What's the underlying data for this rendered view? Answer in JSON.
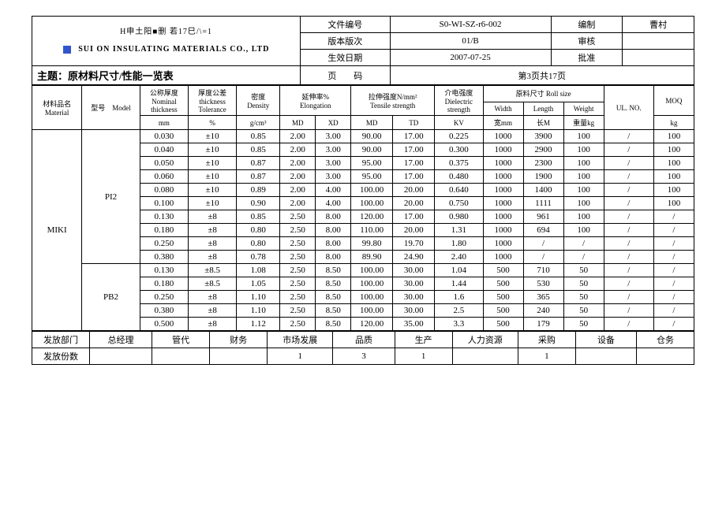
{
  "header": {
    "company_line1": "H申土阳■删 若17巳/\\=1",
    "company_line2": "SUI ON INSULATING MATERIALS CO., LTD",
    "doc_no_label": "文件编号",
    "doc_no": "S0-WI-SZ-r6-002",
    "compiled_label": "编制",
    "compiled_by": "曹村",
    "version_label": "版本版次",
    "version": "01/B",
    "reviewed_label": "审核",
    "eff_date_label": "生效日期",
    "eff_date": "2007-07-25",
    "approved_label": "批准",
    "topic_label": "主题：",
    "topic": "原材料尺寸/性能一览表",
    "page_label": "页　　码",
    "page": "第3页共17页"
  },
  "cols": {
    "material": "材料品名\nMaterial",
    "model": "型号　Model",
    "thickness": "公称厚度\nNominal\nthickness",
    "thickness_unit": "mm",
    "tol": "厚度公差\nthickness\nTolerance",
    "tol_unit": "%",
    "density": "密度\nDensity",
    "density_unit": "g/cm³",
    "elongation": "延伸率%\nElongation",
    "elong_md": "MD",
    "elong_xd": "XD",
    "tensile": "拉伸强度N/mm²\nTensile strength",
    "ten_md": "MD",
    "ten_td": "TD",
    "dielectric": "介电强度\nDielectric\nstrength",
    "dielectric_unit": "KV",
    "rollsize": "原料尺寸 Roll size",
    "width": "Width",
    "width_unit": "宽mm",
    "length": "Length",
    "length_unit": "长M",
    "weight": "Weight",
    "weight_unit": "重量kg",
    "ulno": "UL. NO.",
    "moq": "MOQ",
    "moq_unit": "kg"
  },
  "material": "MIKI",
  "groups": [
    {
      "model": "PI2",
      "rows": [
        {
          "th": "0.030",
          "tol": "±10",
          "den": "0.85",
          "emd": "2.00",
          "exd": "3.00",
          "tmd": "90.00",
          "ttd": "17.00",
          "kv": "0.225",
          "w": "1000",
          "l": "3900",
          "wt": "100",
          "ul": "/",
          "moq": "100"
        },
        {
          "th": "0.040",
          "tol": "±10",
          "den": "0.85",
          "emd": "2.00",
          "exd": "3.00",
          "tmd": "90.00",
          "ttd": "17.00",
          "kv": "0.300",
          "w": "1000",
          "l": "2900",
          "wt": "100",
          "ul": "/",
          "moq": "100"
        },
        {
          "th": "0.050",
          "tol": "±10",
          "den": "0.87",
          "emd": "2.00",
          "exd": "3.00",
          "tmd": "95.00",
          "ttd": "17.00",
          "kv": "0.375",
          "w": "1000",
          "l": "2300",
          "wt": "100",
          "ul": "/",
          "moq": "100"
        },
        {
          "th": "0.060",
          "tol": "±10",
          "den": "0.87",
          "emd": "2.00",
          "exd": "3.00",
          "tmd": "95.00",
          "ttd": "17.00",
          "kv": "0.480",
          "w": "1000",
          "l": "1900",
          "wt": "100",
          "ul": "/",
          "moq": "100"
        },
        {
          "th": "0.080",
          "tol": "±10",
          "den": "0.89",
          "emd": "2.00",
          "exd": "4.00",
          "tmd": "100.00",
          "ttd": "20.00",
          "kv": "0.640",
          "w": "1000",
          "l": "1400",
          "wt": "100",
          "ul": "/",
          "moq": "100"
        },
        {
          "th": "0.100",
          "tol": "±10",
          "den": "0.90",
          "emd": "2.00",
          "exd": "4.00",
          "tmd": "100.00",
          "ttd": "20.00",
          "kv": "0.750",
          "w": "1000",
          "l": "1111",
          "wt": "100",
          "ul": "/",
          "moq": "100"
        },
        {
          "th": "0.130",
          "tol": "±8",
          "den": "0.85",
          "emd": "2.50",
          "exd": "8.00",
          "tmd": "120.00",
          "ttd": "17.00",
          "kv": "0.980",
          "w": "1000",
          "l": "961",
          "wt": "100",
          "ul": "/",
          "moq": "/"
        },
        {
          "th": "0.180",
          "tol": "±8",
          "den": "0.80",
          "emd": "2.50",
          "exd": "8.00",
          "tmd": "110.00",
          "ttd": "20.00",
          "kv": "1.31",
          "w": "1000",
          "l": "694",
          "wt": "100",
          "ul": "/",
          "moq": "/"
        },
        {
          "th": "0.250",
          "tol": "±8",
          "den": "0.80",
          "emd": "2.50",
          "exd": "8.00",
          "tmd": "99.80",
          "ttd": "19.70",
          "kv": "1.80",
          "w": "1000",
          "l": "/",
          "wt": "/",
          "ul": "/",
          "moq": "/"
        },
        {
          "th": "0.380",
          "tol": "±8",
          "den": "0.78",
          "emd": "2.50",
          "exd": "8.00",
          "tmd": "89.90",
          "ttd": "24.90",
          "kv": "2.40",
          "w": "1000",
          "l": "/",
          "wt": "/",
          "ul": "/",
          "moq": "/"
        }
      ]
    },
    {
      "model": "PB2",
      "rows": [
        {
          "th": "0.130",
          "tol": "±8.5",
          "den": "1.08",
          "emd": "2.50",
          "exd": "8.50",
          "tmd": "100.00",
          "ttd": "30.00",
          "kv": "1.04",
          "w": "500",
          "l": "710",
          "wt": "50",
          "ul": "/",
          "moq": "/"
        },
        {
          "th": "0.180",
          "tol": "±8.5",
          "den": "1.05",
          "emd": "2.50",
          "exd": "8.50",
          "tmd": "100.00",
          "ttd": "30.00",
          "kv": "1.44",
          "w": "500",
          "l": "530",
          "wt": "50",
          "ul": "/",
          "moq": "/"
        },
        {
          "th": "0.250",
          "tol": "±8",
          "den": "1.10",
          "emd": "2.50",
          "exd": "8.50",
          "tmd": "100.00",
          "ttd": "30.00",
          "kv": "1.6",
          "w": "500",
          "l": "365",
          "wt": "50",
          "ul": "/",
          "moq": "/"
        },
        {
          "th": "0.380",
          "tol": "±8",
          "den": "1.10",
          "emd": "2.50",
          "exd": "8.50",
          "tmd": "100.00",
          "ttd": "30.00",
          "kv": "2.5",
          "w": "500",
          "l": "240",
          "wt": "50",
          "ul": "/",
          "moq": "/"
        },
        {
          "th": "0.500",
          "tol": "±8",
          "den": "1.12",
          "emd": "2.50",
          "exd": "8.50",
          "tmd": "120.00",
          "ttd": "35.00",
          "kv": "3.3",
          "w": "500",
          "l": "179",
          "wt": "50",
          "ul": "/",
          "moq": "/"
        }
      ]
    }
  ],
  "footer": {
    "dist_label": "发放部门",
    "qty_label": "发放份数",
    "depts": [
      "总经理",
      "管代",
      "财务",
      "市场发展",
      "品质",
      "生产",
      "人力资源",
      "采购",
      "设备",
      "仓务"
    ],
    "qtys": [
      "",
      "",
      "",
      "1",
      "3",
      "1",
      "",
      "1",
      "",
      ""
    ]
  }
}
